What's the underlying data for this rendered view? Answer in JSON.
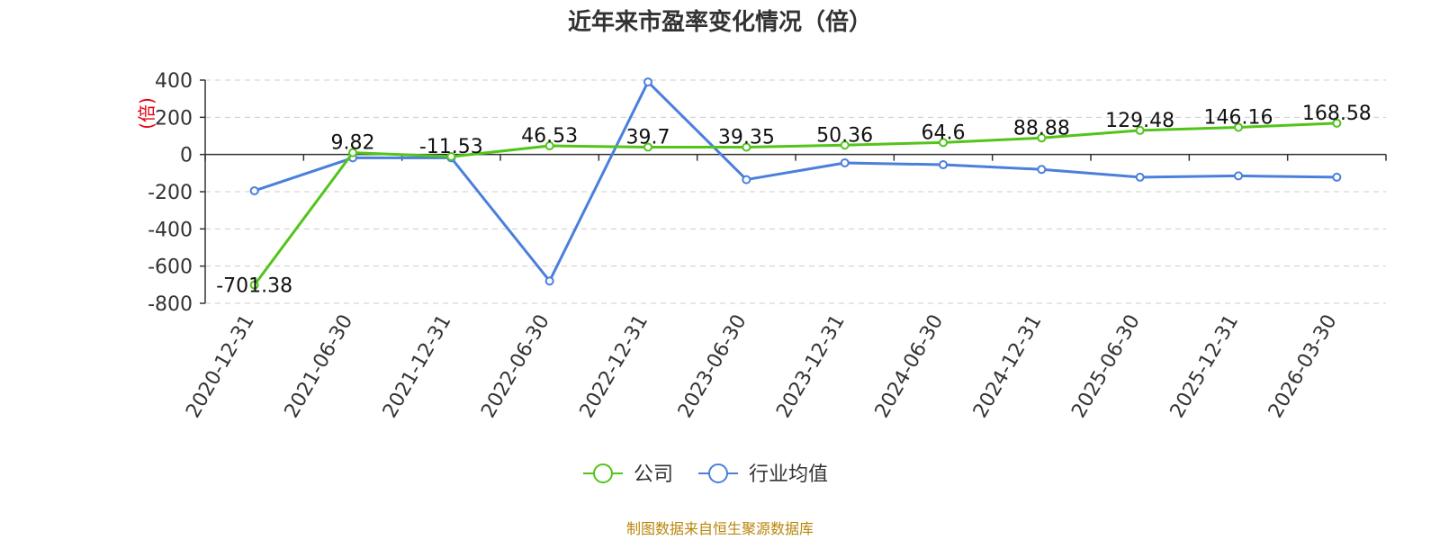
{
  "chart_data": {
    "type": "line",
    "title": "近年来市盈率变化情况（倍）",
    "ylabel": "(倍)",
    "xlabel": "",
    "categories": [
      "2020-12-31",
      "2021-06-30",
      "2021-12-31",
      "2022-06-30",
      "2022-12-31",
      "2023-06-30",
      "2023-12-31",
      "2024-06-30",
      "2024-12-31",
      "2025-06-30",
      "2025-12-31",
      "2026-03-30"
    ],
    "ylim": [
      -800,
      400
    ],
    "yticks": [
      400,
      200,
      0,
      -200,
      -400,
      -600,
      -800
    ],
    "grid": true,
    "legend_position": "bottom-center",
    "series": [
      {
        "name": "公司",
        "color": "#52c41a",
        "values": [
          -701.38,
          9.82,
          -11.53,
          46.53,
          39.7,
          39.35,
          50.36,
          64.6,
          88.88,
          129.48,
          146.16,
          168.58
        ],
        "labels": [
          "-701.38",
          "9.82",
          "-11.53",
          "46.53",
          "39.7",
          "39.35",
          "50.36",
          "64.6",
          "88.88",
          "129.48",
          "146.16",
          "168.58"
        ]
      },
      {
        "name": "行业均值",
        "color": "#4a7fdc",
        "values": [
          -195,
          -18,
          -18,
          -680,
          390,
          -135,
          -45,
          -55,
          -80,
          -122,
          -115,
          -122
        ]
      }
    ],
    "source": "制图数据来自恒生聚源数据库"
  }
}
